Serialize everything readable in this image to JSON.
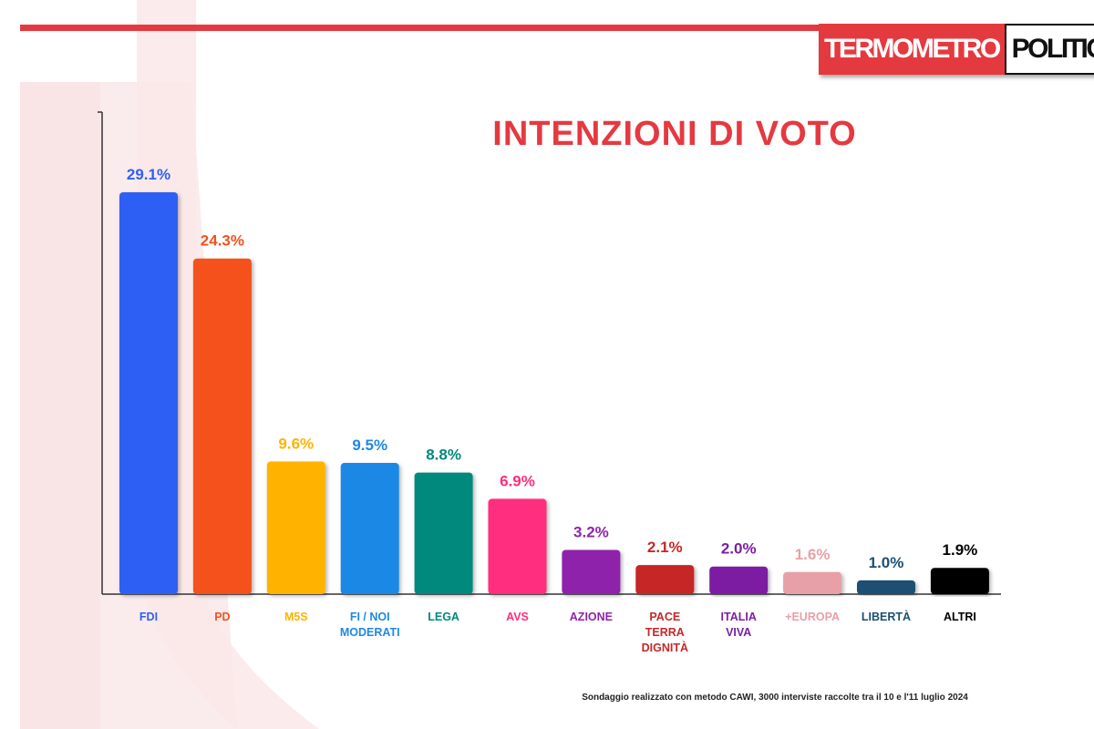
{
  "header": {
    "logo_part1": "TERMOMETRO",
    "logo_part2": "POLITICO",
    "accent_color": "#e53940"
  },
  "chart_data": {
    "type": "bar",
    "title": "INTENZIONI DI VOTO",
    "categories": [
      "FDI",
      "PD",
      "M5S",
      "FI / NOI MODERATI",
      "LEGA",
      "AVS",
      "AZIONE",
      "PACE TERRA DIGNITÀ",
      "ITALIA VIVA",
      "+EUROPA",
      "LIBERTÀ",
      "ALTRI"
    ],
    "category_lines": [
      [
        "FDI"
      ],
      [
        "PD"
      ],
      [
        "M5S"
      ],
      [
        "FI / NOI",
        "MODERATI"
      ],
      [
        "LEGA"
      ],
      [
        "AVS"
      ],
      [
        "AZIONE"
      ],
      [
        "PACE",
        "TERRA",
        "DIGNITÀ"
      ],
      [
        "ITALIA",
        "VIVA"
      ],
      [
        "+EUROPA"
      ],
      [
        "LIBERTÀ"
      ],
      [
        "ALTRI"
      ]
    ],
    "values": [
      29.1,
      24.3,
      9.6,
      9.5,
      8.8,
      6.9,
      3.2,
      2.1,
      2.0,
      1.6,
      1.0,
      1.9
    ],
    "value_labels": [
      "29.1%",
      "24.3%",
      "9.6%",
      "9.5%",
      "8.8%",
      "6.9%",
      "3.2%",
      "2.1%",
      "2.0%",
      "1.6%",
      "1.0%",
      "1.9%"
    ],
    "colors": [
      "#2f5ff5",
      "#f4511e",
      "#ffb300",
      "#1e88e5",
      "#00897b",
      "#ff2d7f",
      "#8e24aa",
      "#c62828",
      "#7b1fa2",
      "#e8a0a8",
      "#1b4f72",
      "#000000"
    ],
    "ylim": [
      0,
      35
    ],
    "grid": false,
    "legend": "none",
    "xlabel": "",
    "ylabel": ""
  },
  "footnote": "Sondaggio realizzato con metodo CAWI, 3000 interviste raccolte tra il 10 e l'11 luglio 2024"
}
